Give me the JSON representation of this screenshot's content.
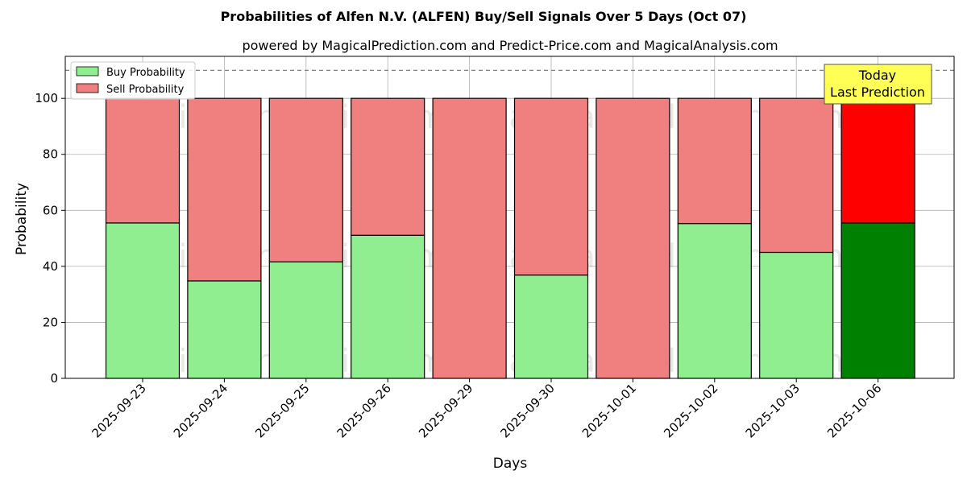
{
  "title": "Probabilities of Alfen N.V. (ALFEN) Buy/Sell Signals Over 5 Days (Oct 07)",
  "subtitle": "powered by MagicalPrediction.com and Predict-Price.com and MagicalAnalysis.com",
  "watermarks": [
    "MagicalAnalysis.com",
    "MagicalPrediction.com"
  ],
  "annotation": {
    "line1": "Today",
    "line2": "Last Prediction"
  },
  "colors": {
    "buy": "#90ee90",
    "sell": "#f08080",
    "buy_today": "#008000",
    "sell_today": "#ff0000",
    "annotation_bg": "#ffff55"
  },
  "chart_data": {
    "type": "bar",
    "stacked": true,
    "xlabel": "Days",
    "ylabel": "Probability",
    "ylim": [
      0,
      115
    ],
    "yticks": [
      0,
      20,
      40,
      60,
      80,
      100
    ],
    "reference_line": 110,
    "grid": true,
    "legend_position": "top-left",
    "categories": [
      "2025-09-23",
      "2025-09-24",
      "2025-09-25",
      "2025-09-26",
      "2025-09-29",
      "2025-09-30",
      "2025-10-01",
      "2025-10-02",
      "2025-10-03",
      "2025-10-06"
    ],
    "series": [
      {
        "name": "Buy Probability",
        "values": [
          55.5,
          34.8,
          41.6,
          51.1,
          0,
          36.9,
          0,
          55.3,
          45.0,
          55.5
        ]
      },
      {
        "name": "Sell Probability",
        "values": [
          44.5,
          65.2,
          58.4,
          48.9,
          100,
          63.1,
          100,
          44.7,
          55.0,
          44.5
        ]
      }
    ]
  }
}
